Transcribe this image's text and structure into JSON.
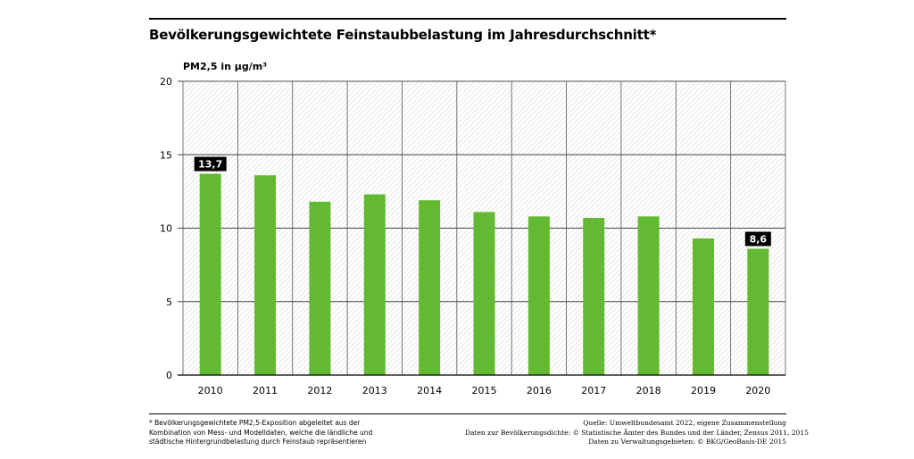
{
  "title": "Bevölkerungsgewichtete Feinstaubbelastung im Jahresdurchschnitt*",
  "chart_data": {
    "type": "bar",
    "title": "Bevölkerungsgewichtete Feinstaubbelastung im Jahresdurchschnitt*",
    "ylabel": "PM2,5 in µg/m³",
    "xlabel": "",
    "categories": [
      "2010",
      "2011",
      "2012",
      "2013",
      "2014",
      "2015",
      "2016",
      "2017",
      "2018",
      "2019",
      "2020"
    ],
    "values": [
      13.7,
      13.6,
      11.8,
      12.3,
      11.9,
      11.1,
      10.8,
      10.7,
      10.8,
      9.3,
      8.6
    ],
    "data_labels": {
      "2010": "13,7",
      "2020": "8,6"
    },
    "yticks": [
      "0",
      "5",
      "10",
      "15",
      "20"
    ],
    "ylim": [
      0,
      20
    ],
    "grid": true,
    "background": "hatched",
    "bar_color": "#63b932"
  },
  "footnote": [
    "* Bevölkerungsgewichtete PM2,5-Exposition abgeleitet aus der",
    "Kombination von Mess- und Modelldaten, welche die ländliche und",
    "städtische Hintergrundbelastung durch Feinstaub repräsentieren"
  ],
  "sources": [
    "Quelle: Umweltbundesamt 2022, eigene Zusammenstellung",
    "Daten zur Bevölkerungsdichte: © Statistische Ämter des Bundes und der Länder, Zensus 2011, 2015",
    "Daten zu Verwaltungsgebieten: © BKG/GeoBasis-DE 2015"
  ]
}
